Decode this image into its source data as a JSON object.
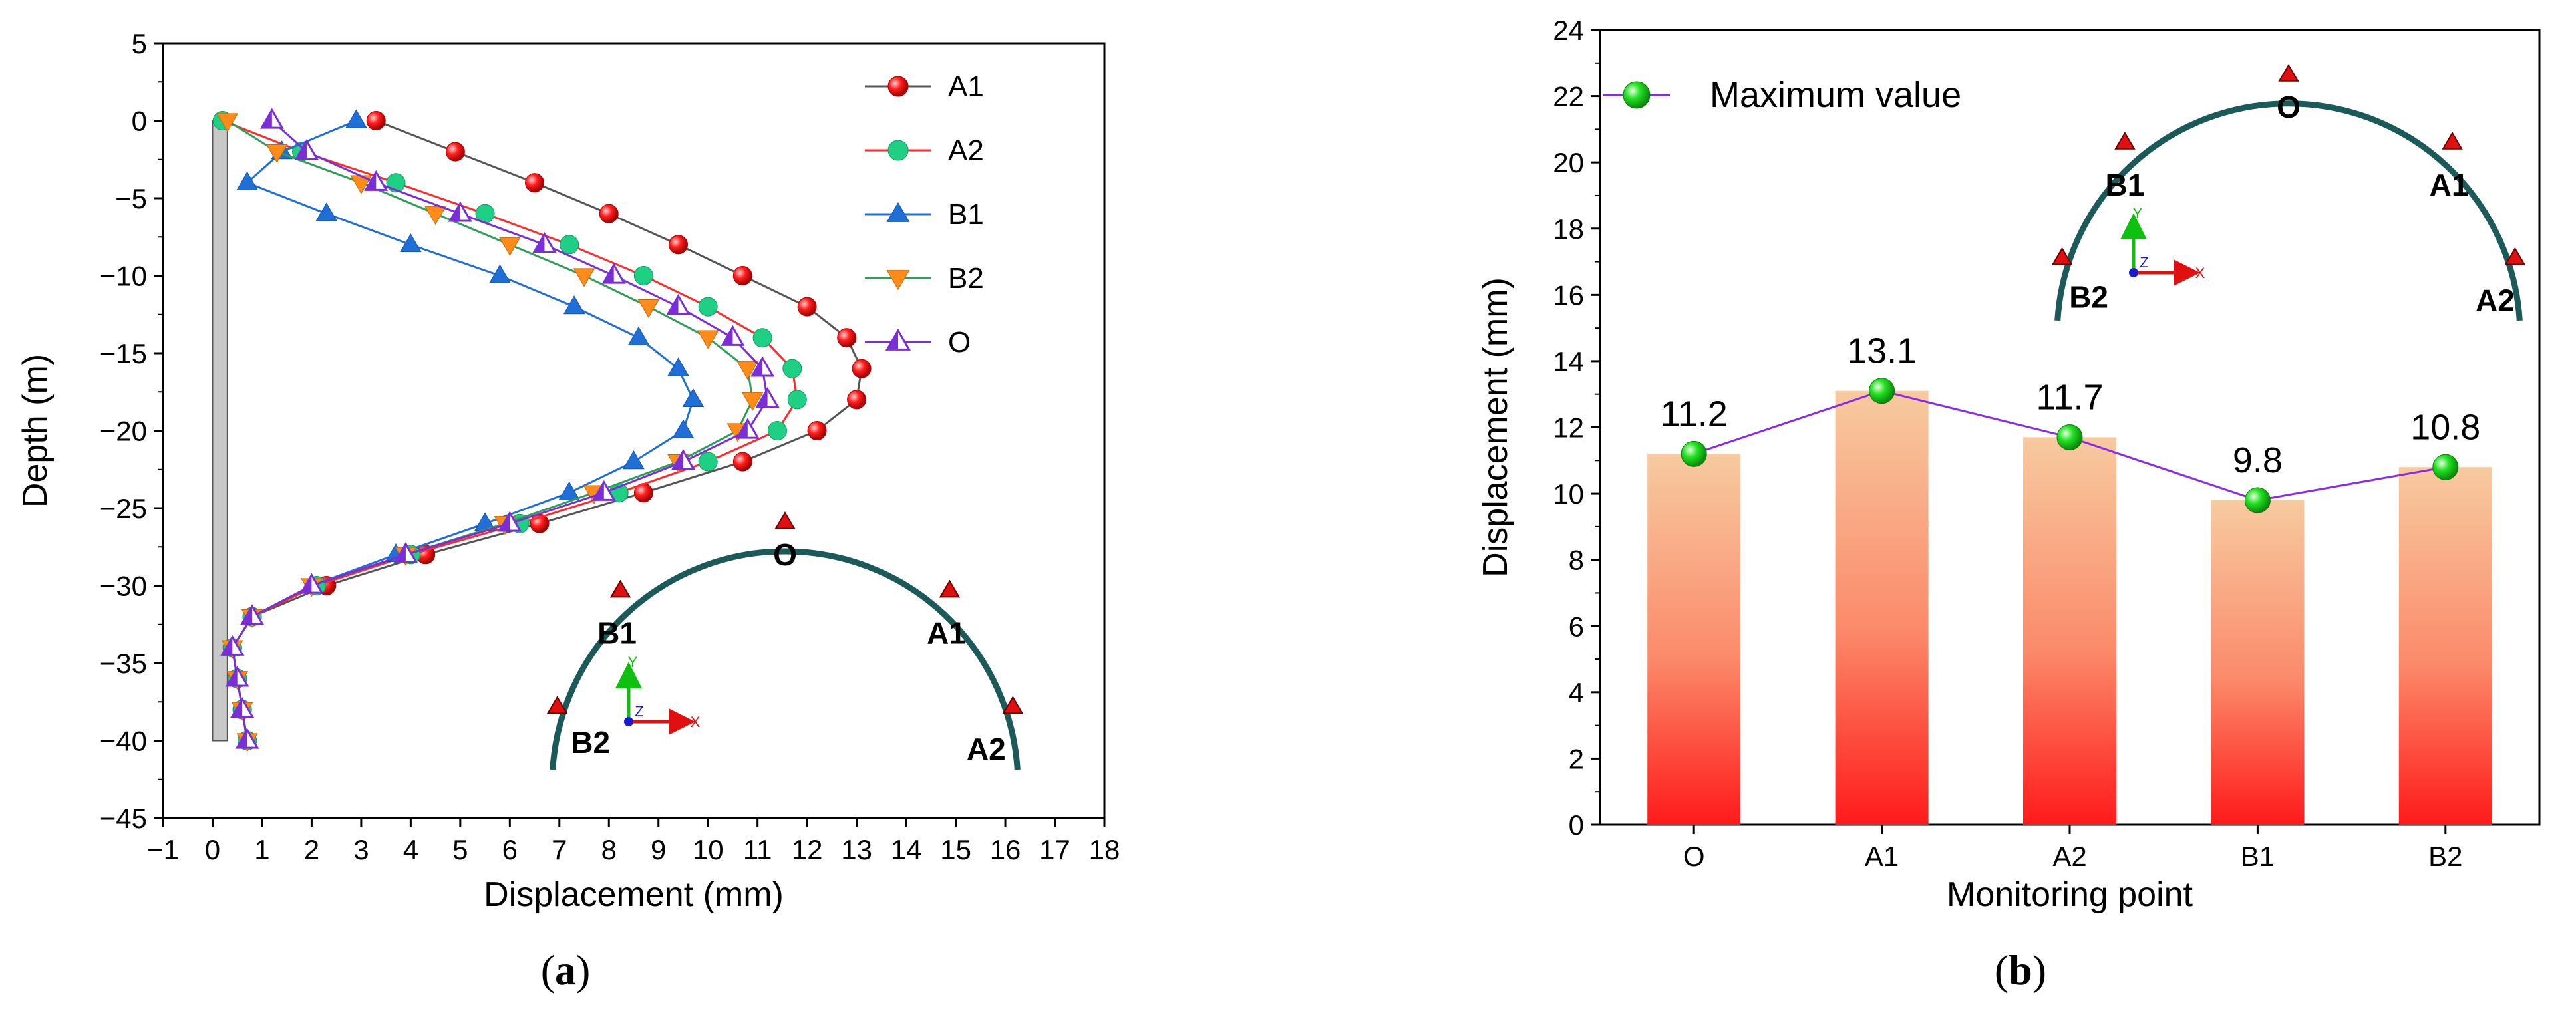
{
  "chart_data": [
    {
      "id": "a",
      "type": "line",
      "panel_label": "a",
      "title": "",
      "xlabel": "Displacement (mm)",
      "ylabel": "Depth (m)",
      "xlim": [
        -1,
        18
      ],
      "ylim": [
        -45,
        5
      ],
      "xticks": [
        "−1",
        "0",
        "1",
        "2",
        "3",
        "4",
        "5",
        "6",
        "7",
        "8",
        "9",
        "10",
        "11",
        "12",
        "13",
        "14",
        "15",
        "16",
        "17",
        "18"
      ],
      "yticks": [
        "5",
        "0",
        "−5",
        "−10",
        "−15",
        "−20",
        "−25",
        "−30",
        "−35",
        "−40",
        "−45"
      ],
      "legend_position": "top-right",
      "pile": {
        "x": [
          0,
          0.3
        ],
        "y": [
          -40,
          0
        ]
      },
      "series": [
        {
          "name": "A1",
          "color": "#555555",
          "marker": "sphere-red",
          "points": [
            [
              3.3,
              0
            ],
            [
              4.9,
              -2
            ],
            [
              6.5,
              -4
            ],
            [
              8.0,
              -6
            ],
            [
              9.4,
              -8
            ],
            [
              10.7,
              -10
            ],
            [
              12.0,
              -12
            ],
            [
              12.8,
              -14
            ],
            [
              13.1,
              -16
            ],
            [
              13.0,
              -18
            ],
            [
              12.2,
              -20
            ],
            [
              10.7,
              -22
            ],
            [
              8.7,
              -24
            ],
            [
              6.6,
              -26
            ],
            [
              4.3,
              -28
            ],
            [
              2.3,
              -30
            ],
            [
              0.8,
              -32
            ],
            [
              0.4,
              -34
            ],
            [
              0.5,
              -36
            ],
            [
              0.6,
              -38
            ],
            [
              0.7,
              -40
            ]
          ]
        },
        {
          "name": "A2",
          "color": "#ff2b2b",
          "marker": "circle-green",
          "points": [
            [
              0.2,
              0
            ],
            [
              1.8,
              -2
            ],
            [
              3.7,
              -4
            ],
            [
              5.5,
              -6
            ],
            [
              7.2,
              -8
            ],
            [
              8.7,
              -10
            ],
            [
              10.0,
              -12
            ],
            [
              11.1,
              -14
            ],
            [
              11.7,
              -16
            ],
            [
              11.8,
              -18
            ],
            [
              11.4,
              -20
            ],
            [
              10.0,
              -22
            ],
            [
              8.2,
              -24
            ],
            [
              6.2,
              -26
            ],
            [
              4.0,
              -28
            ],
            [
              2.1,
              -30
            ],
            [
              0.8,
              -32
            ],
            [
              0.4,
              -34
            ],
            [
              0.5,
              -36
            ],
            [
              0.6,
              -38
            ],
            [
              0.7,
              -40
            ]
          ]
        },
        {
          "name": "B1",
          "color": "#1f6fd6",
          "marker": "triangle-up-blue",
          "points": [
            [
              2.9,
              0
            ],
            [
              1.4,
              -2
            ],
            [
              0.7,
              -4
            ],
            [
              2.3,
              -6
            ],
            [
              4.0,
              -8
            ],
            [
              5.8,
              -10
            ],
            [
              7.3,
              -12
            ],
            [
              8.6,
              -14
            ],
            [
              9.4,
              -16
            ],
            [
              9.7,
              -18
            ],
            [
              9.5,
              -20
            ],
            [
              8.5,
              -22
            ],
            [
              7.2,
              -24
            ],
            [
              5.5,
              -26
            ],
            [
              3.7,
              -28
            ],
            [
              2.0,
              -30
            ],
            [
              0.8,
              -32
            ],
            [
              0.4,
              -34
            ],
            [
              0.5,
              -36
            ],
            [
              0.6,
              -38
            ],
            [
              0.7,
              -40
            ]
          ]
        },
        {
          "name": "B2",
          "color": "#2e9e58",
          "marker": "triangle-down-orange",
          "points": [
            [
              0.3,
              0
            ],
            [
              1.3,
              -2
            ],
            [
              3.0,
              -4
            ],
            [
              4.5,
              -6
            ],
            [
              6.0,
              -8
            ],
            [
              7.5,
              -10
            ],
            [
              8.8,
              -12
            ],
            [
              10.0,
              -14
            ],
            [
              10.8,
              -16
            ],
            [
              10.9,
              -18
            ],
            [
              10.6,
              -20
            ],
            [
              9.4,
              -22
            ],
            [
              7.7,
              -24
            ],
            [
              5.9,
              -26
            ],
            [
              3.9,
              -28
            ],
            [
              2.0,
              -30
            ],
            [
              0.8,
              -32
            ],
            [
              0.4,
              -34
            ],
            [
              0.5,
              -36
            ],
            [
              0.6,
              -38
            ],
            [
              0.7,
              -40
            ]
          ]
        },
        {
          "name": "O",
          "color": "#7b2ed6",
          "marker": "triangle-up-purple",
          "points": [
            [
              1.2,
              0
            ],
            [
              1.9,
              -2
            ],
            [
              3.3,
              -4
            ],
            [
              5.0,
              -6
            ],
            [
              6.7,
              -8
            ],
            [
              8.1,
              -10
            ],
            [
              9.4,
              -12
            ],
            [
              10.5,
              -14
            ],
            [
              11.1,
              -16
            ],
            [
              11.2,
              -18
            ],
            [
              10.8,
              -20
            ],
            [
              9.5,
              -22
            ],
            [
              7.9,
              -24
            ],
            [
              6.0,
              -26
            ],
            [
              3.9,
              -28
            ],
            [
              2.0,
              -30
            ],
            [
              0.8,
              -32
            ],
            [
              0.4,
              -34
            ],
            [
              0.5,
              -36
            ],
            [
              0.6,
              -38
            ],
            [
              0.7,
              -40
            ]
          ]
        }
      ],
      "inset": {
        "labels": [
          "O",
          "A1",
          "A2",
          "B1",
          "B2"
        ],
        "axis_labels": {
          "x": "X",
          "y": "Y",
          "z": "Z"
        }
      }
    },
    {
      "id": "b",
      "type": "bar",
      "panel_label": "b",
      "title": "",
      "xlabel": "Monitoring point",
      "ylabel": "Displacement (mm)",
      "ylim": [
        0,
        24
      ],
      "yticks": [
        "0",
        "2",
        "4",
        "6",
        "8",
        "10",
        "12",
        "14",
        "16",
        "18",
        "20",
        "22",
        "24"
      ],
      "categories": [
        "O",
        "A1",
        "A2",
        "B1",
        "B2"
      ],
      "values": [
        11.2,
        13.1,
        11.7,
        9.8,
        10.8
      ],
      "value_labels": [
        "11.2",
        "13.1",
        "11.7",
        "9.8",
        "10.8"
      ],
      "line_series": {
        "name": "Maximum value",
        "color": "#8b2be2",
        "values": [
          11.2,
          13.1,
          11.7,
          9.8,
          10.8
        ]
      },
      "bar_gradient": {
        "top": "#f7caa0",
        "bottom": "#ff1a1a"
      },
      "legend_position": "top-left",
      "inset": {
        "labels": [
          "O",
          "A1",
          "A2",
          "B1",
          "B2"
        ],
        "axis_labels": {
          "x": "X",
          "y": "Y",
          "z": "Z"
        }
      }
    }
  ]
}
